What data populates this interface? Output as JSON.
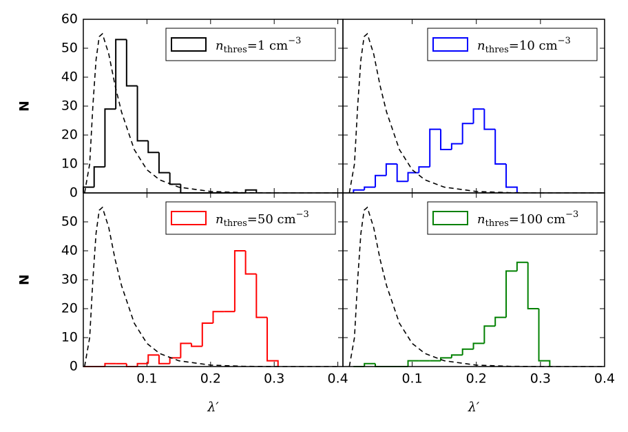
{
  "chart_data": [
    {
      "type": "histogram",
      "color": "#000000",
      "name": [
        "n",
        "thres",
        "=1 cm",
        "−3"
      ],
      "bins": [
        0,
        0.017,
        0.034,
        0.051,
        0.068,
        0.085,
        0.102,
        0.119,
        0.136,
        0.153,
        0.17,
        0.187,
        0.204,
        0.221,
        0.238,
        0.255,
        0.272
      ],
      "counts": [
        2,
        9,
        29,
        53,
        37,
        18,
        14,
        7,
        3,
        0,
        0,
        0,
        0,
        0,
        0,
        1
      ],
      "reference": {
        "x": [
          0.002,
          0.01,
          0.015,
          0.02,
          0.025,
          0.03,
          0.04,
          0.05,
          0.06,
          0.08,
          0.1,
          0.12,
          0.15,
          0.2,
          0.25,
          0.3,
          0.35,
          0.4
        ],
        "y": [
          0,
          10,
          30,
          46,
          54,
          55,
          48,
          37,
          28,
          15,
          8,
          4.5,
          2,
          0.5,
          0.1,
          0,
          0,
          0
        ]
      },
      "xlim": [
        0,
        0.408
      ],
      "ylim": [
        0,
        60
      ],
      "xticks": [
        0.1,
        0.2,
        0.3,
        0.4
      ],
      "yticks": [
        0,
        10,
        20,
        30,
        40,
        50,
        60
      ],
      "show_xtick_labels": false,
      "show_ytick_labels": true,
      "ylabel": "N",
      "legend": "upper right"
    },
    {
      "type": "histogram",
      "color": "#0000ff",
      "name": [
        "n",
        "thres",
        "=10 cm",
        "−3"
      ],
      "bins": [
        0.0085,
        0.0255,
        0.0425,
        0.0595,
        0.0765,
        0.0935,
        0.1105,
        0.1275,
        0.1445,
        0.1615,
        0.1785,
        0.1955,
        0.2125,
        0.2295,
        0.2465,
        0.2635
      ],
      "counts": [
        1,
        2,
        6,
        10,
        4,
        7,
        9,
        22,
        15,
        17,
        24,
        29,
        22,
        10,
        2
      ],
      "reference": {
        "x": [
          0.002,
          0.01,
          0.015,
          0.02,
          0.025,
          0.03,
          0.04,
          0.05,
          0.06,
          0.08,
          0.1,
          0.12,
          0.15,
          0.2,
          0.25,
          0.3,
          0.35,
          0.4
        ],
        "y": [
          0,
          10,
          30,
          46,
          54,
          55,
          48,
          37,
          28,
          15,
          8,
          4.5,
          2,
          0.5,
          0.1,
          0,
          0,
          0
        ]
      },
      "xlim": [
        -0.008,
        0.4
      ],
      "ylim": [
        0,
        60
      ],
      "xticks": [
        0.1,
        0.2,
        0.3,
        0.4
      ],
      "yticks": [
        0,
        10,
        20,
        30,
        40,
        50,
        60
      ],
      "show_xtick_labels": false,
      "show_ytick_labels": false,
      "legend": "upper right"
    },
    {
      "type": "histogram",
      "color": "#ff0000",
      "name": [
        "n",
        "thres",
        "=50 cm",
        "−3"
      ],
      "bins": [
        0,
        0.017,
        0.034,
        0.051,
        0.068,
        0.085,
        0.102,
        0.119,
        0.136,
        0.153,
        0.17,
        0.187,
        0.204,
        0.221,
        0.238,
        0.255,
        0.272,
        0.289,
        0.306
      ],
      "counts": [
        0,
        0,
        1,
        1,
        0,
        1,
        4,
        1,
        3,
        8,
        7,
        15,
        19,
        19,
        40,
        32,
        17,
        2
      ],
      "reference": {
        "x": [
          0.002,
          0.01,
          0.015,
          0.02,
          0.025,
          0.03,
          0.04,
          0.05,
          0.06,
          0.08,
          0.1,
          0.12,
          0.15,
          0.2,
          0.25,
          0.3,
          0.35,
          0.4
        ],
        "y": [
          0,
          10,
          30,
          46,
          54,
          55,
          48,
          37,
          28,
          15,
          8,
          4.5,
          2,
          0.5,
          0.1,
          0,
          0,
          0
        ]
      },
      "xlim": [
        0,
        0.408
      ],
      "ylim": [
        0,
        60
      ],
      "xticks": [
        0.1,
        0.2,
        0.3,
        0.4
      ],
      "yticks": [
        0,
        10,
        20,
        30,
        40,
        50
      ],
      "show_xtick_labels": true,
      "show_ytick_labels": true,
      "ylabel": "N",
      "xlabel": "λ′",
      "legend": "upper right"
    },
    {
      "type": "histogram",
      "color": "#008000",
      "name": [
        "n",
        "thres",
        "=100 cm",
        "−3"
      ],
      "bins": [
        0.0085,
        0.0255,
        0.0425,
        0.0595,
        0.0765,
        0.0935,
        0.1105,
        0.1275,
        0.1445,
        0.1615,
        0.1785,
        0.1955,
        0.2125,
        0.2295,
        0.2465,
        0.2635,
        0.2805,
        0.2975,
        0.3145
      ],
      "counts": [
        0,
        1,
        0,
        0,
        0,
        2,
        2,
        2,
        3,
        4,
        6,
        8,
        14,
        17,
        33,
        36,
        20,
        2
      ],
      "reference": {
        "x": [
          0.002,
          0.01,
          0.015,
          0.02,
          0.025,
          0.03,
          0.04,
          0.05,
          0.06,
          0.08,
          0.1,
          0.12,
          0.15,
          0.2,
          0.25,
          0.3,
          0.35,
          0.4
        ],
        "y": [
          0,
          10,
          30,
          46,
          54,
          55,
          48,
          37,
          28,
          15,
          8,
          4.5,
          2,
          0.5,
          0.1,
          0,
          0,
          0
        ]
      },
      "xlim": [
        -0.008,
        0.4
      ],
      "ylim": [
        0,
        60
      ],
      "xticks": [
        0.1,
        0.2,
        0.3,
        0.4
      ],
      "yticks": [
        0,
        10,
        20,
        30,
        40,
        50
      ],
      "show_xtick_labels": true,
      "show_ytick_labels": false,
      "xlabel": "λ′",
      "legend": "upper right"
    }
  ]
}
